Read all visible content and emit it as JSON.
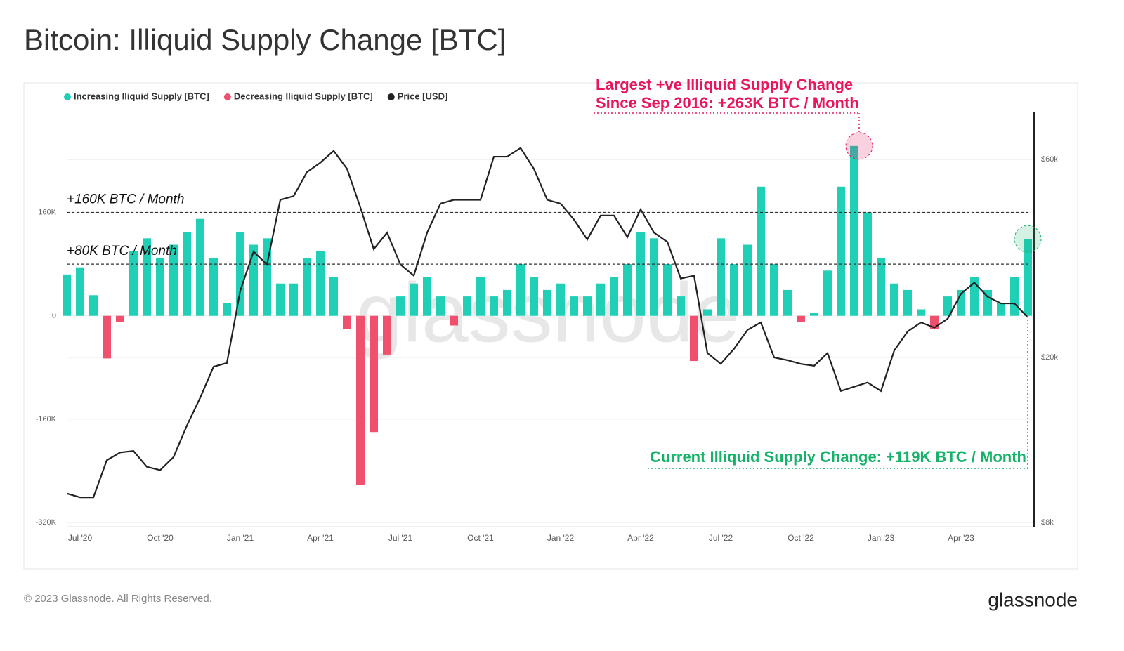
{
  "chart_data": {
    "type": "bar",
    "title": "Bitcoin: Illiquid Supply Change [BTC]",
    "categories": [
      null,
      "Jul '20",
      null,
      null,
      null,
      null,
      null,
      "Oct '20",
      null,
      null,
      null,
      null,
      null,
      "Jan '21",
      null,
      null,
      null,
      null,
      null,
      "Apr '21",
      null,
      null,
      null,
      null,
      null,
      "Jul '21",
      null,
      null,
      null,
      null,
      null,
      "Oct '21",
      null,
      null,
      null,
      null,
      null,
      "Jan '22",
      null,
      null,
      null,
      null,
      null,
      "Apr '22",
      null,
      null,
      null,
      null,
      null,
      "Jul '22",
      null,
      null,
      null,
      null,
      null,
      "Oct '22",
      null,
      null,
      null,
      null,
      null,
      "Jan '23",
      null,
      null,
      null,
      null,
      null,
      "Apr '23",
      null,
      null,
      null,
      null,
      null
    ],
    "series": [
      {
        "name": "Increasing Iliquid Supply [BTC]",
        "type": "bar",
        "color": "#1fcfb6",
        "values": [
          64000,
          75000,
          32000,
          null,
          null,
          100000,
          120000,
          90000,
          110000,
          130000,
          150000,
          90000,
          20000,
          130000,
          110000,
          120000,
          50000,
          50000,
          90000,
          100000,
          60000,
          null,
          null,
          null,
          null,
          30000,
          50000,
          60000,
          30000,
          null,
          30000,
          60000,
          30000,
          40000,
          80000,
          60000,
          40000,
          50000,
          30000,
          30000,
          50000,
          60000,
          80000,
          130000,
          120000,
          80000,
          30000,
          null,
          10000,
          120000,
          80000,
          110000,
          200000,
          80000,
          40000,
          null,
          5000,
          70000,
          200000,
          263000,
          160000,
          90000,
          50000,
          40000,
          10000,
          null,
          30000,
          40000,
          60000,
          40000,
          20000,
          60000,
          119000
        ]
      },
      {
        "name": "Decreasing Iliquid Supply [BTC]",
        "type": "bar",
        "color": "#f0506e",
        "values": [
          null,
          null,
          null,
          -66000,
          -10000,
          null,
          null,
          null,
          null,
          null,
          null,
          null,
          null,
          null,
          null,
          null,
          null,
          null,
          null,
          null,
          null,
          -20000,
          -262000,
          -180000,
          -60000,
          null,
          null,
          null,
          null,
          -15000,
          null,
          null,
          null,
          null,
          null,
          null,
          null,
          null,
          null,
          null,
          null,
          null,
          null,
          null,
          null,
          null,
          null,
          -70000,
          null,
          null,
          null,
          null,
          null,
          null,
          null,
          -10000,
          null,
          null,
          null,
          null,
          null,
          null,
          null,
          null,
          null,
          -20000,
          null,
          null,
          null,
          null,
          null,
          null,
          null
        ]
      },
      {
        "name": "Price [USD]",
        "type": "line",
        "axis": "y2",
        "color": "#222222",
        "values": [
          9400,
          9200,
          9200,
          11300,
          11800,
          11900,
          10900,
          10700,
          11500,
          13700,
          16000,
          19000,
          19400,
          29000,
          36000,
          33500,
          48000,
          49000,
          56000,
          59000,
          63000,
          57000,
          46000,
          36500,
          40000,
          33500,
          31500,
          40000,
          47000,
          48000,
          48000,
          48000,
          61000,
          61000,
          64000,
          57000,
          48000,
          47000,
          43000,
          38500,
          44000,
          44000,
          39000,
          45500,
          40000,
          38000,
          31000,
          31500,
          20500,
          19300,
          21000,
          23300,
          24300,
          20000,
          19700,
          19300,
          19100,
          20500,
          16600,
          17000,
          17400,
          16600,
          20800,
          23100,
          24300,
          23600,
          24800,
          28500,
          30300,
          28000,
          27000,
          27000,
          25000
        ]
      }
    ],
    "ylim": [
      -320000,
      315000
    ],
    "yticks": [
      {
        "value": -320000,
        "label": "-320K"
      },
      {
        "value": -160000,
        "label": "-160K"
      },
      0,
      {
        "value": 160000,
        "label": "160K"
      }
    ],
    "y2lim": [
      8000,
      78000
    ],
    "y2scale": "log",
    "y2ticks": [
      {
        "value": 8000,
        "label": "$8k"
      },
      {
        "value": 20000,
        "label": "$20k"
      },
      {
        "value": 60000,
        "label": "$60k"
      }
    ],
    "grid": true,
    "legend": "top-left",
    "reference_lines": [
      {
        "value": 160000,
        "label": "+160K BTC / Month"
      },
      {
        "value": 80000,
        "label": "+80K BTC / Month"
      }
    ],
    "annotations": {
      "peak": [
        "Largest +ve Illiquid Supply Change",
        "Since Sep 2016: +263K BTC / Month"
      ],
      "current": "Current Illiquid Supply Change: +119K BTC / Month"
    },
    "watermark": "glassnode"
  },
  "footer": {
    "copyright": "© 2023 Glassnode. All Rights Reserved.",
    "brand": "glassnode"
  }
}
